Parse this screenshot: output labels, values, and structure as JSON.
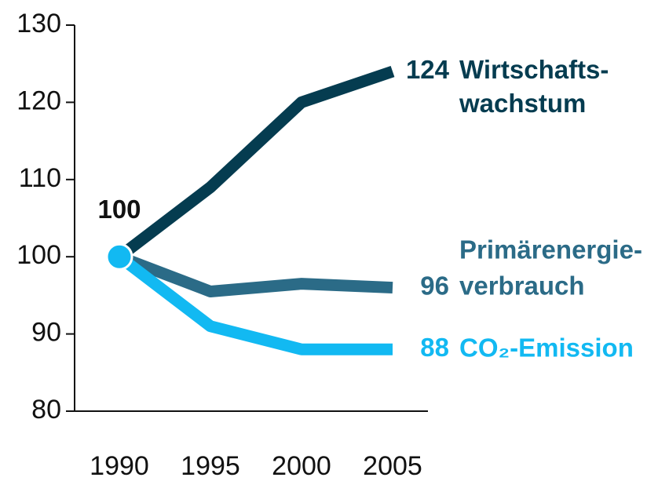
{
  "chart_data": {
    "type": "line",
    "x": [
      1990,
      1995,
      2000,
      2005
    ],
    "series": [
      {
        "name": "Wirtschafts-\nwachstum",
        "color": "#053c50",
        "values": [
          100,
          109,
          120,
          124
        ]
      },
      {
        "name": "Primärenergie-\nverbrauch",
        "color": "#2b6b87",
        "values": [
          100,
          95.5,
          96.5,
          96
        ]
      },
      {
        "name": "CO₂-Emission",
        "color": "#12b9f2",
        "values": [
          100,
          91,
          88,
          88
        ]
      }
    ],
    "xlim": [
      1990,
      2005
    ],
    "ylim": [
      80,
      130
    ],
    "yticks": [
      80,
      90,
      100,
      110,
      120,
      130
    ]
  }
}
